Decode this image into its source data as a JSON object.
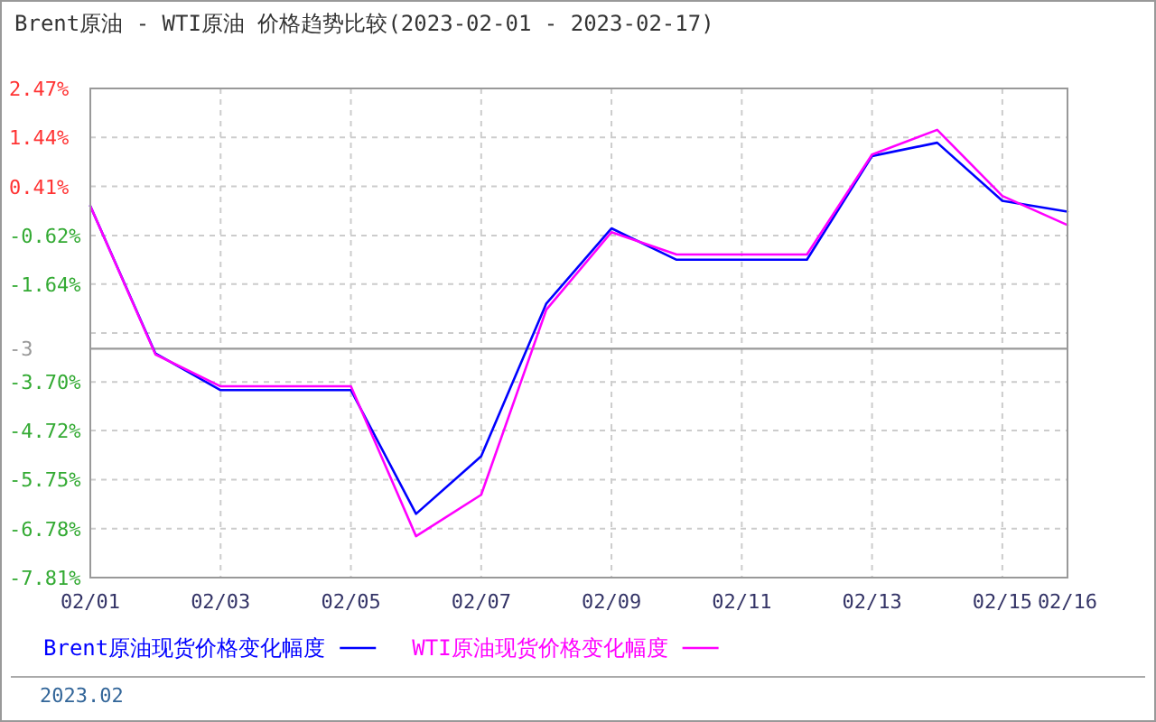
{
  "chart_data": {
    "type": "line",
    "title": "Brent原油 - WTI原油 价格趋势比较(2023-02-01 - 2023-02-17)",
    "categories": [
      "02/01",
      null,
      "02/03",
      null,
      "02/05",
      null,
      "02/07",
      null,
      "02/09",
      null,
      "02/11",
      null,
      "02/13",
      null,
      "02/15",
      "02/16"
    ],
    "series": [
      {
        "name": "Brent原油现货价格变化幅度",
        "color": "#0000ff",
        "values": [
          0.0,
          -3.1,
          -3.87,
          -3.87,
          -3.87,
          -6.47,
          -5.26,
          -2.05,
          -0.47,
          -1.13,
          -1.13,
          -1.13,
          1.05,
          1.33,
          0.11,
          -0.12
        ]
      },
      {
        "name": "WTI原油现货价格变化幅度",
        "color": "#ff00ff",
        "values": [
          0.0,
          -3.12,
          -3.79,
          -3.79,
          -3.79,
          -6.94,
          -6.07,
          -2.18,
          -0.55,
          -1.02,
          -1.02,
          -1.02,
          1.08,
          1.6,
          0.21,
          -0.4
        ]
      }
    ],
    "ylim": [
      -7.81,
      2.47
    ],
    "yticks": [
      {
        "value": 2.47,
        "label": "2.47%"
      },
      {
        "value": 1.44,
        "label": "1.44%"
      },
      {
        "value": 0.41,
        "label": "0.41%"
      },
      {
        "value": -0.62,
        "label": "-0.62%"
      },
      {
        "value": -1.64,
        "label": "-1.64%"
      },
      {
        "value": -2.67,
        "label": null
      },
      {
        "value": -3,
        "label": "-3"
      },
      {
        "value": -3.7,
        "label": "-3.70%"
      },
      {
        "value": -4.72,
        "label": "-4.72%"
      },
      {
        "value": -5.75,
        "label": "-5.75%"
      },
      {
        "value": -6.78,
        "label": "-6.78%"
      },
      {
        "value": -7.81,
        "label": "-7.81%"
      }
    ],
    "ref_lines": [
      {
        "axis": "y",
        "value": -3,
        "color": "#999999"
      }
    ],
    "grid": true,
    "legend": "bottom",
    "marker": "none",
    "line_style": "solid",
    "annotations": [
      "2023.02"
    ]
  }
}
